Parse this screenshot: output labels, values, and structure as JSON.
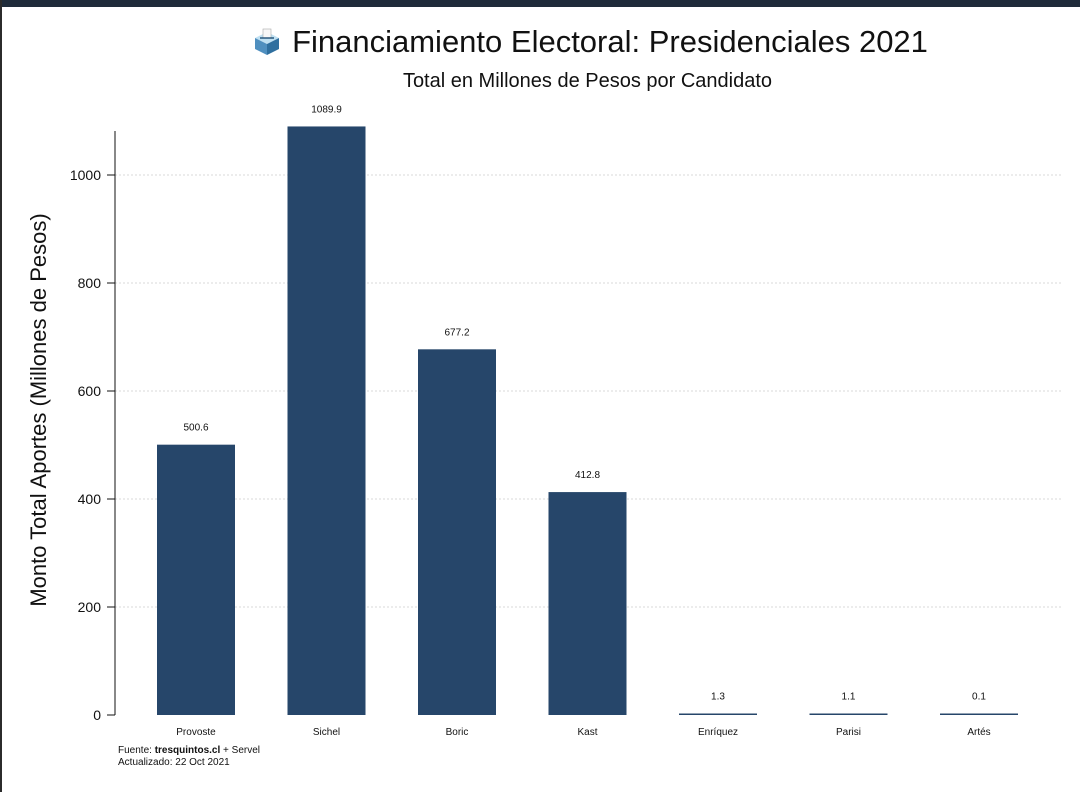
{
  "chart_data": {
    "type": "bar",
    "title": "Financiamiento Electoral: Presidenciales 2021",
    "subtitle": "Total en Millones de Pesos por Candidato",
    "ylabel": "Monto Total Aportes (Millones de Pesos)",
    "xlabel": "",
    "categories": [
      "Provoste",
      "Sichel",
      "Boric",
      "Kast",
      "Enríquez",
      "Parisi",
      "Artés"
    ],
    "values": [
      500.6,
      1089.9,
      677.2,
      412.8,
      1.3,
      1.1,
      0.1
    ],
    "data_labels": [
      "500.6",
      "1089.9",
      "677.2",
      "412.8",
      "1.3",
      "1.1",
      "0.1"
    ],
    "yticks": [
      0,
      200,
      400,
      600,
      800,
      1000
    ],
    "ytick_labels": [
      "0",
      "200",
      "400",
      "600",
      "800",
      "1000"
    ],
    "ylim": [
      0,
      1100
    ],
    "grid": true,
    "bar_color": "#26466a"
  },
  "title_icon": "ballot-box-icon",
  "footer": {
    "source_prefix": "Fuente: ",
    "source_bold": "tresquintos.cl",
    "source_suffix": " + Servel",
    "updated": "Actualizado: 22 Oct 2021"
  },
  "colors": {
    "bar": "#26466a",
    "grid": "#d9d9d9",
    "axis": "#111111",
    "top_bar": "#1f2b3a"
  }
}
